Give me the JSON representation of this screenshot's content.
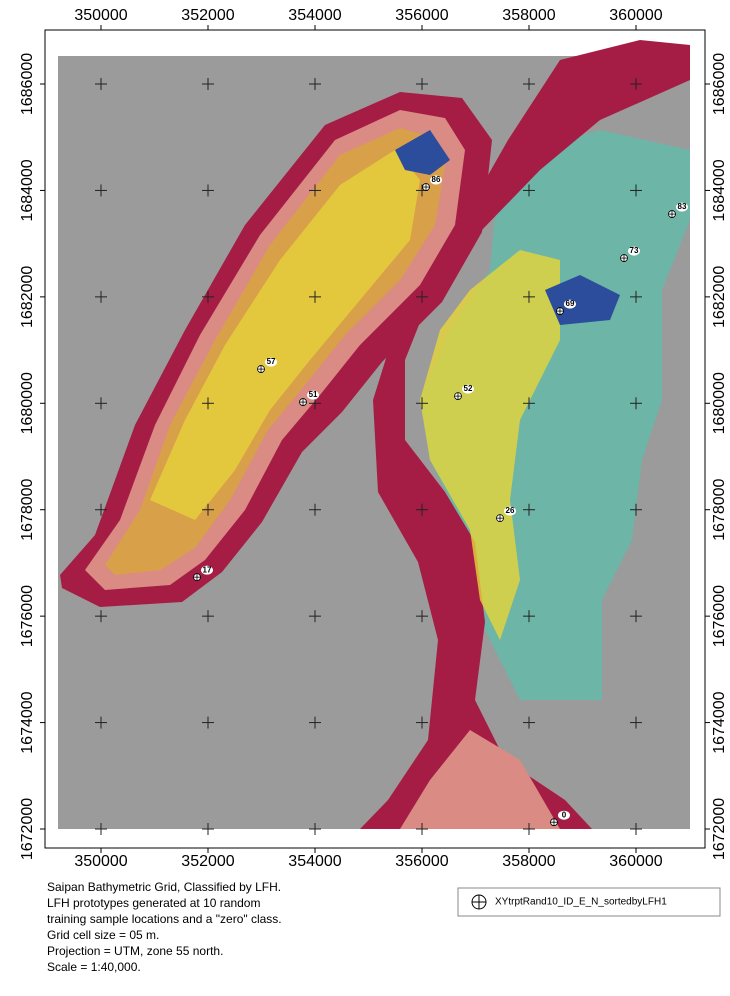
{
  "map": {
    "xlim": [
      348953,
      361290
    ],
    "ylim": [
      1671643,
      1687015
    ],
    "x_ticks": [
      350000,
      352000,
      354000,
      356000,
      358000,
      360000
    ],
    "y_ticks": [
      1672000,
      1674000,
      1676000,
      1678000,
      1680000,
      1682000,
      1684000,
      1686000
    ],
    "points": [
      {
        "label": "86",
        "x": 356075,
        "y": 1684064
      },
      {
        "label": "83",
        "x": 360673,
        "y": 1683556
      },
      {
        "label": "73",
        "x": 359776,
        "y": 1682729
      },
      {
        "label": "69",
        "x": 358579,
        "y": 1681733
      },
      {
        "label": "57",
        "x": 352991,
        "y": 1680643
      },
      {
        "label": "51",
        "x": 353776,
        "y": 1680023
      },
      {
        "label": "52",
        "x": 356673,
        "y": 1680135
      },
      {
        "label": "26",
        "x": 357458,
        "y": 1677842
      },
      {
        "label": "17",
        "x": 351794,
        "y": 1676733
      },
      {
        "label": "0",
        "x": 358467,
        "y": 1672128
      }
    ]
  },
  "caption": [
    "Saipan Bathymetric Grid, Classified by LFH.",
    "LFH prototypes generated at 10 random",
    "training sample locations and a \"zero\" class.",
    "Grid cell size = 05 m.",
    "Projection = UTM, zone 55 north.",
    "Scale = 1:40,000."
  ],
  "legend": {
    "label": "XYtrptRand10_ID_E_N_sortedbyLFH1"
  }
}
